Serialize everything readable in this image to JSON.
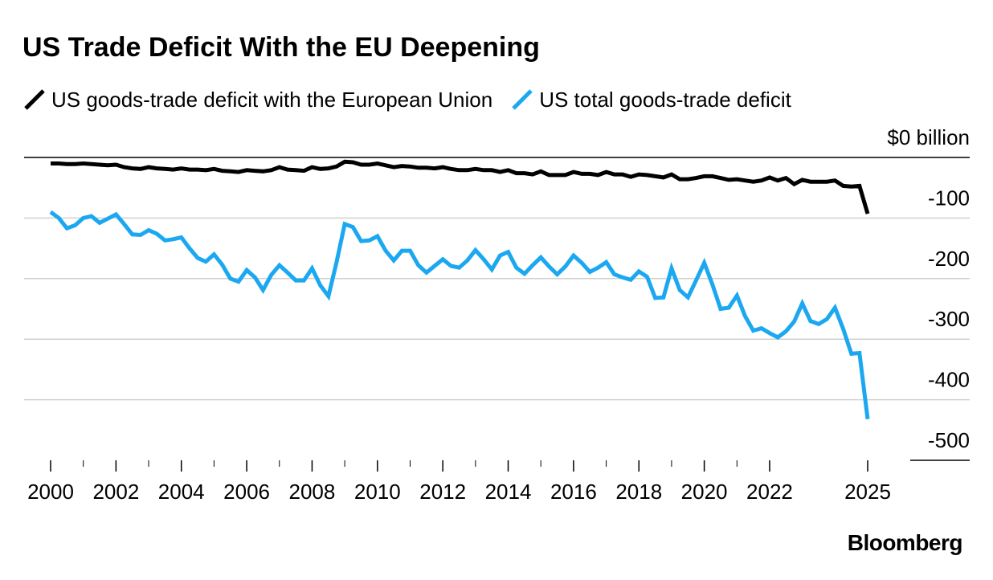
{
  "chart_data": {
    "type": "line",
    "title": "US Trade Deficit With the EU Deepening",
    "ylabel": "$0 billion",
    "ylim": [
      -500,
      0
    ],
    "xlim": [
      2000,
      2025
    ],
    "y_ticks": [
      0,
      -100,
      -200,
      -300,
      -400,
      -500
    ],
    "y_tick_labels": [
      "$0 billion",
      "-100",
      "-200",
      "-300",
      "-400",
      "-500"
    ],
    "x_ticks": [
      2000,
      2002,
      2004,
      2006,
      2008,
      2010,
      2012,
      2014,
      2016,
      2018,
      2020,
      2022,
      2025
    ],
    "x_tick_labels": [
      "2000",
      "2002",
      "2004",
      "2006",
      "2008",
      "2010",
      "2012",
      "2014",
      "2016",
      "2018",
      "2020",
      "2022",
      "2025"
    ],
    "grid": true,
    "legend_position": "top-left",
    "series": [
      {
        "name": "US goods-trade deficit with the European Union",
        "color": "#000000",
        "x": [
          2000.0,
          2000.25,
          2000.5,
          2000.75,
          2001.0,
          2001.25,
          2001.5,
          2001.75,
          2002.0,
          2002.25,
          2002.5,
          2002.75,
          2003.0,
          2003.25,
          2003.5,
          2003.75,
          2004.0,
          2004.25,
          2004.5,
          2004.75,
          2005.0,
          2005.25,
          2005.5,
          2005.75,
          2006.0,
          2006.25,
          2006.5,
          2006.75,
          2007.0,
          2007.25,
          2007.5,
          2007.75,
          2008.0,
          2008.25,
          2008.5,
          2008.75,
          2009.0,
          2009.25,
          2009.5,
          2009.75,
          2010.0,
          2010.25,
          2010.5,
          2010.75,
          2011.0,
          2011.25,
          2011.5,
          2011.75,
          2012.0,
          2012.25,
          2012.5,
          2012.75,
          2013.0,
          2013.25,
          2013.5,
          2013.75,
          2014.0,
          2014.25,
          2014.5,
          2014.75,
          2015.0,
          2015.25,
          2015.5,
          2015.75,
          2016.0,
          2016.25,
          2016.5,
          2016.75,
          2017.0,
          2017.25,
          2017.5,
          2017.75,
          2018.0,
          2018.25,
          2018.5,
          2018.75,
          2019.0,
          2019.25,
          2019.5,
          2019.75,
          2020.0,
          2020.25,
          2020.5,
          2020.75,
          2021.0,
          2021.25,
          2021.5,
          2021.75,
          2022.0,
          2022.25,
          2022.5,
          2022.75,
          2023.0,
          2023.25,
          2023.5,
          2023.75,
          2024.0,
          2024.25,
          2024.5,
          2024.75,
          2025.0
        ],
        "values": [
          -10,
          -10,
          -11,
          -11,
          -10,
          -11,
          -12,
          -13,
          -12,
          -16,
          -18,
          -19,
          -16,
          -18,
          -19,
          -20,
          -18,
          -20,
          -20,
          -21,
          -19,
          -22,
          -23,
          -24,
          -21,
          -22,
          -23,
          -21,
          -16,
          -20,
          -21,
          -22,
          -16,
          -19,
          -18,
          -15,
          -7,
          -8,
          -12,
          -12,
          -10,
          -13,
          -16,
          -14,
          -15,
          -17,
          -17,
          -18,
          -16,
          -19,
          -21,
          -21,
          -19,
          -21,
          -21,
          -24,
          -21,
          -26,
          -26,
          -28,
          -23,
          -29,
          -29,
          -29,
          -24,
          -27,
          -27,
          -29,
          -24,
          -28,
          -28,
          -32,
          -28,
          -29,
          -31,
          -33,
          -28,
          -36,
          -36,
          -34,
          -31,
          -31,
          -34,
          -37,
          -36,
          -38,
          -40,
          -38,
          -33,
          -38,
          -34,
          -44,
          -37,
          -40,
          -40,
          -40,
          -38,
          -47,
          -48,
          -47,
          -93
        ]
      },
      {
        "name": "US total goods-trade deficit",
        "color": "#1ba8f0",
        "x": [
          2000.0,
          2000.25,
          2000.5,
          2000.75,
          2001.0,
          2001.25,
          2001.5,
          2001.75,
          2002.0,
          2002.25,
          2002.5,
          2002.75,
          2003.0,
          2003.25,
          2003.5,
          2003.75,
          2004.0,
          2004.25,
          2004.5,
          2004.75,
          2005.0,
          2005.25,
          2005.5,
          2005.75,
          2006.0,
          2006.25,
          2006.5,
          2006.75,
          2007.0,
          2007.25,
          2007.5,
          2007.75,
          2008.0,
          2008.25,
          2008.5,
          2008.75,
          2009.0,
          2009.25,
          2009.5,
          2009.75,
          2010.0,
          2010.25,
          2010.5,
          2010.75,
          2011.0,
          2011.25,
          2011.5,
          2011.75,
          2012.0,
          2012.25,
          2012.5,
          2012.75,
          2013.0,
          2013.25,
          2013.5,
          2013.75,
          2014.0,
          2014.25,
          2014.5,
          2014.75,
          2015.0,
          2015.25,
          2015.5,
          2015.75,
          2016.0,
          2016.25,
          2016.5,
          2016.75,
          2017.0,
          2017.25,
          2017.5,
          2017.75,
          2018.0,
          2018.25,
          2018.5,
          2018.75,
          2019.0,
          2019.25,
          2019.5,
          2019.75,
          2020.0,
          2020.25,
          2020.5,
          2020.75,
          2021.0,
          2021.25,
          2021.5,
          2021.75,
          2022.0,
          2022.25,
          2022.5,
          2022.75,
          2023.0,
          2023.25,
          2023.5,
          2023.75,
          2024.0,
          2024.25,
          2024.5,
          2024.75,
          2025.0
        ],
        "values": [
          -90,
          -100,
          -117,
          -112,
          -100,
          -97,
          -108,
          -101,
          -94,
          -110,
          -127,
          -128,
          -120,
          -126,
          -137,
          -135,
          -132,
          -150,
          -166,
          -172,
          -160,
          -177,
          -200,
          -205,
          -186,
          -198,
          -219,
          -194,
          -178,
          -190,
          -203,
          -203,
          -183,
          -211,
          -229,
          -173,
          -110,
          -115,
          -138,
          -137,
          -130,
          -154,
          -170,
          -154,
          -154,
          -178,
          -190,
          -179,
          -168,
          -179,
          -182,
          -170,
          -153,
          -168,
          -185,
          -162,
          -156,
          -182,
          -192,
          -178,
          -165,
          -180,
          -193,
          -180,
          -162,
          -174,
          -189,
          -182,
          -173,
          -193,
          -198,
          -202,
          -188,
          -197,
          -232,
          -231,
          -183,
          -219,
          -231,
          -203,
          -174,
          -210,
          -250,
          -248,
          -228,
          -262,
          -286,
          -282,
          -290,
          -297,
          -287,
          -271,
          -241,
          -270,
          -275,
          -267,
          -248,
          -283,
          -324,
          -323,
          -432
        ]
      }
    ]
  },
  "brand": "Bloomberg"
}
